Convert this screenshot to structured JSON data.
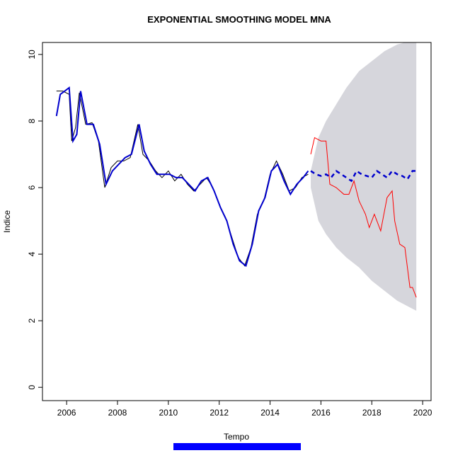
{
  "chart_data": {
    "type": "line",
    "title": "EXPONENTIAL SMOOTHING MODEL MNA",
    "xlabel": "Tempo",
    "ylabel": "Indice",
    "xlim": [
      2005.05,
      2020.33
    ],
    "ylim": [
      -0.4,
      10.36
    ],
    "xticks": [
      2006,
      2008,
      2010,
      2012,
      2014,
      2016,
      2018,
      2020
    ],
    "yticks": [
      0,
      2,
      4,
      6,
      8,
      10
    ],
    "band": {
      "color": "#d6d6dc",
      "x": [
        2015.6,
        2015.9,
        2016.2,
        2016.6,
        2017.0,
        2017.5,
        2018.0,
        2018.5,
        2019.0,
        2019.5,
        2019.75
      ],
      "upper": [
        6.5,
        7.5,
        8.0,
        8.5,
        9.0,
        9.5,
        9.8,
        10.1,
        10.3,
        10.4,
        10.4
      ],
      "lower": [
        6.0,
        5.0,
        4.6,
        4.2,
        3.9,
        3.6,
        3.2,
        2.9,
        2.6,
        2.4,
        2.3
      ]
    },
    "lines": [
      {
        "color": "#000000",
        "width": 1,
        "dash": false,
        "x": [
          2005.6,
          2005.85,
          2006.1,
          2006.2,
          2006.35,
          2006.5,
          2006.75,
          2007.0,
          2007.25,
          2007.5,
          2007.75,
          2008.0,
          2008.25,
          2008.5,
          2008.8,
          2009.0,
          2009.25,
          2009.5,
          2009.75,
          2010.0,
          2010.25,
          2010.5,
          2010.75,
          2011.0,
          2011.25,
          2011.5,
          2011.75,
          2012.0,
          2012.25,
          2012.5,
          2012.75,
          2013.0,
          2013.25,
          2013.5,
          2013.75,
          2014.0,
          2014.25,
          2014.5,
          2014.75,
          2015.0,
          2015.25,
          2015.5
        ],
        "values": [
          8.9,
          8.9,
          8.8,
          7.4,
          7.8,
          8.85,
          7.9,
          7.95,
          7.4,
          6.0,
          6.6,
          6.8,
          6.8,
          6.9,
          7.9,
          7.0,
          6.8,
          6.5,
          6.3,
          6.5,
          6.2,
          6.4,
          6.1,
          5.9,
          6.1,
          6.3,
          6.0,
          5.5,
          5.1,
          4.5,
          3.9,
          3.65,
          4.2,
          5.2,
          5.6,
          6.4,
          6.8,
          6.4,
          5.9,
          6.0,
          6.3,
          6.4
        ]
      },
      {
        "color": "#0000cd",
        "width": 2,
        "dash": false,
        "x": [
          2005.6,
          2005.75,
          2006.1,
          2006.25,
          2006.4,
          2006.55,
          2006.8,
          2007.05,
          2007.3,
          2007.55,
          2007.8,
          2008.05,
          2008.3,
          2008.55,
          2008.85,
          2009.05,
          2009.3,
          2009.55,
          2009.8,
          2010.05,
          2010.3,
          2010.55,
          2010.8,
          2011.05,
          2011.3,
          2011.55,
          2011.8,
          2012.05,
          2012.3,
          2012.55,
          2012.8,
          2013.05,
          2013.3,
          2013.55,
          2013.8,
          2014.05,
          2014.3,
          2014.55,
          2014.8,
          2015.05,
          2015.3,
          2015.5
        ],
        "values": [
          8.15,
          8.8,
          9.0,
          7.4,
          7.6,
          8.9,
          7.9,
          7.9,
          7.3,
          6.1,
          6.5,
          6.7,
          6.9,
          7.0,
          7.9,
          7.1,
          6.7,
          6.4,
          6.4,
          6.4,
          6.3,
          6.3,
          6.1,
          5.9,
          6.2,
          6.3,
          5.9,
          5.4,
          5.0,
          4.3,
          3.8,
          3.65,
          4.3,
          5.3,
          5.7,
          6.5,
          6.7,
          6.2,
          5.8,
          6.1,
          6.3,
          6.5
        ]
      },
      {
        "color": "#ff0000",
        "width": 1,
        "dash": false,
        "x": [
          2015.6,
          2015.75,
          2016.0,
          2016.2,
          2016.35,
          2016.6,
          2016.9,
          2017.1,
          2017.3,
          2017.5,
          2017.75,
          2017.9,
          2018.1,
          2018.35,
          2018.6,
          2018.8,
          2018.9,
          2019.1,
          2019.3,
          2019.5,
          2019.6,
          2019.75
        ],
        "values": [
          7.0,
          7.5,
          7.4,
          7.4,
          6.1,
          6.0,
          5.8,
          5.8,
          6.2,
          5.6,
          5.2,
          4.8,
          5.2,
          4.7,
          5.7,
          5.9,
          5.0,
          4.3,
          4.2,
          3.0,
          3.0,
          2.7
        ]
      },
      {
        "color": "#0000cd",
        "width": 2.5,
        "dash": true,
        "x": [
          2015.6,
          2015.8,
          2016.0,
          2016.2,
          2016.4,
          2016.6,
          2016.8,
          2017.0,
          2017.2,
          2017.4,
          2017.6,
          2017.8,
          2018.0,
          2018.2,
          2018.4,
          2018.6,
          2018.8,
          2019.0,
          2019.2,
          2019.4,
          2019.6,
          2019.75
        ],
        "values": [
          6.5,
          6.4,
          6.35,
          6.4,
          6.3,
          6.5,
          6.4,
          6.3,
          6.2,
          6.5,
          6.4,
          6.35,
          6.3,
          6.5,
          6.4,
          6.3,
          6.5,
          6.4,
          6.35,
          6.25,
          6.5,
          6.5
        ]
      }
    ]
  }
}
